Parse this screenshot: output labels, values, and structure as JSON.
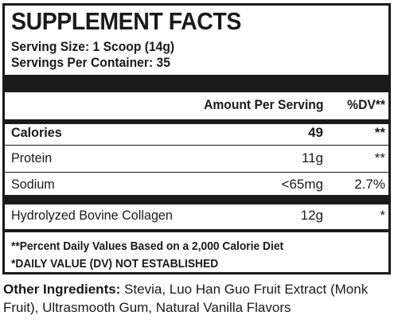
{
  "panel": {
    "title": "SUPPLEMENT FACTS",
    "serving_size": "Serving Size: 1 Scoop (14g)",
    "servings_per_container": "Servings Per Container: 35",
    "header": {
      "amount_per_serving": "Amount Per Serving",
      "dv": "%DV**"
    },
    "rows": [
      {
        "name": "Calories",
        "amount": "49",
        "dv": "**"
      },
      {
        "name": "Protein",
        "amount": "11g",
        "dv": "**"
      },
      {
        "name": "Sodium",
        "amount": "<65mg",
        "dv": "2.7%"
      },
      {
        "name": "Hydrolyzed Bovine Collagen",
        "amount": "12g",
        "dv": "*"
      }
    ],
    "footnotes": [
      "**Percent Daily Values Based on a 2,000 Calorie Diet",
      "*DAILY VALUE (DV) NOT ESTABLISHED"
    ]
  },
  "ingredients": {
    "label": "Other Ingredients:",
    "text": " Stevia, Luo Han Guo Fruit Extract (Monk Fruit), Ultrasmooth Gum, Natural Vanilla Flavors"
  }
}
